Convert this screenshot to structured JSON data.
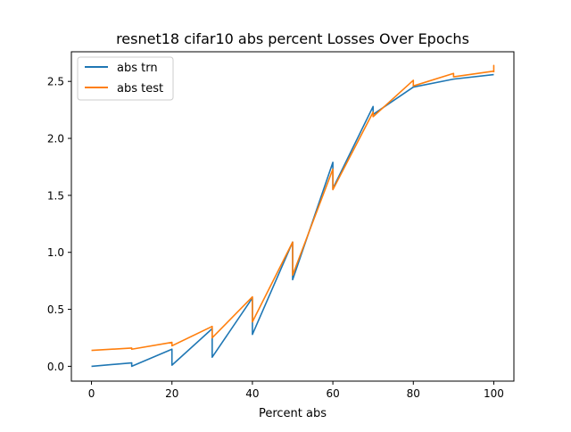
{
  "chart_data": {
    "type": "line",
    "title": "resnet18 cifar10 abs percent Losses Over Epochs",
    "xlabel": "Percent abs",
    "ylabel": "",
    "xlim": [
      -5,
      105
    ],
    "ylim": [
      -0.13,
      2.76
    ],
    "xticks": [
      0,
      20,
      40,
      60,
      80,
      100
    ],
    "xtick_labels": [
      "0",
      "20",
      "40",
      "60",
      "80",
      "100"
    ],
    "yticks": [
      0.0,
      0.5,
      1.0,
      1.5,
      2.0,
      2.5
    ],
    "ytick_labels": [
      "0.0",
      "0.5",
      "1.0",
      "1.5",
      "2.0",
      "2.5"
    ],
    "grid": false,
    "legend_position": "top-left",
    "series": [
      {
        "name": "abs trn",
        "color": "#1f77b4",
        "points": [
          [
            0,
            0.0
          ],
          [
            10,
            0.03
          ],
          [
            10,
            0.0
          ],
          [
            20,
            0.15
          ],
          [
            20,
            0.01
          ],
          [
            30,
            0.33
          ],
          [
            30,
            0.08
          ],
          [
            40,
            0.6
          ],
          [
            40,
            0.28
          ],
          [
            50,
            1.09
          ],
          [
            50,
            0.76
          ],
          [
            60,
            1.79
          ],
          [
            60,
            1.56
          ],
          [
            70,
            2.28
          ],
          [
            70,
            2.21
          ],
          [
            80,
            2.45
          ],
          [
            90,
            2.52
          ],
          [
            100,
            2.56
          ]
        ]
      },
      {
        "name": "abs test",
        "color": "#ff7f0e",
        "points": [
          [
            0,
            0.14
          ],
          [
            10,
            0.16
          ],
          [
            10,
            0.15
          ],
          [
            20,
            0.21
          ],
          [
            20,
            0.18
          ],
          [
            30,
            0.35
          ],
          [
            30,
            0.25
          ],
          [
            40,
            0.61
          ],
          [
            40,
            0.39
          ],
          [
            50,
            1.09
          ],
          [
            50,
            0.8
          ],
          [
            60,
            1.73
          ],
          [
            60,
            1.55
          ],
          [
            70,
            2.23
          ],
          [
            70,
            2.19
          ],
          [
            80,
            2.51
          ],
          [
            80,
            2.46
          ],
          [
            90,
            2.57
          ],
          [
            90,
            2.54
          ],
          [
            100,
            2.59
          ],
          [
            100,
            2.64
          ],
          [
            100,
            2.58
          ]
        ]
      }
    ]
  }
}
